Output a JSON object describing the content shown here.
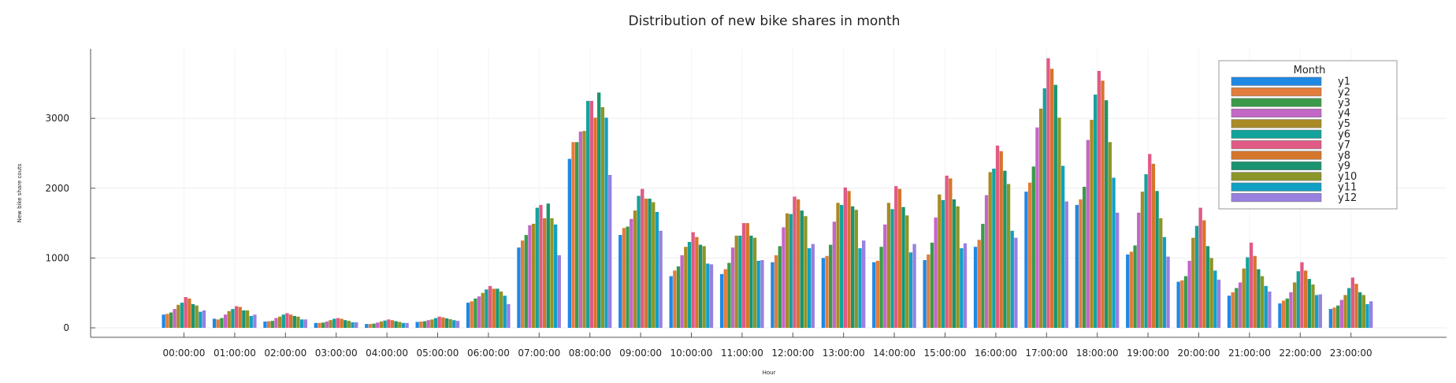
{
  "chart_data": {
    "type": "bar",
    "title": "Distribution of new bike shares in month",
    "xlabel": "Hour",
    "ylabel": "New bike share couts",
    "ylim": [
      -100,
      3950
    ],
    "yticks": [
      0,
      1000,
      2000,
      3000
    ],
    "grid": true,
    "legend": {
      "title": "Month",
      "position": "top-right"
    },
    "categories": [
      "00:00:00",
      "01:00:00",
      "02:00:00",
      "03:00:00",
      "04:00:00",
      "05:00:00",
      "06:00:00",
      "07:00:00",
      "08:00:00",
      "09:00:00",
      "10:00:00",
      "11:00:00",
      "12:00:00",
      "13:00:00",
      "14:00:00",
      "15:00:00",
      "16:00:00",
      "17:00:00",
      "18:00:00",
      "19:00:00",
      "20:00:00",
      "21:00:00",
      "22:00:00",
      "23:00:00"
    ],
    "series": [
      {
        "name": "y1",
        "color": "#1e88e5",
        "values": [
          190,
          130,
          90,
          70,
          55,
          85,
          360,
          1150,
          2420,
          1330,
          740,
          770,
          940,
          1000,
          940,
          970,
          1160,
          1950,
          1760,
          1050,
          660,
          460,
          350,
          270
        ]
      },
      {
        "name": "y2",
        "color": "#e27d3c",
        "values": [
          200,
          120,
          95,
          70,
          55,
          90,
          380,
          1250,
          2660,
          1430,
          820,
          840,
          1040,
          1030,
          960,
          1050,
          1260,
          2080,
          1840,
          1090,
          680,
          510,
          390,
          290
        ]
      },
      {
        "name": "y3",
        "color": "#3a9a4a",
        "values": [
          220,
          140,
          100,
          75,
          60,
          95,
          420,
          1330,
          2660,
          1450,
          880,
          930,
          1170,
          1190,
          1160,
          1220,
          1490,
          2310,
          2020,
          1180,
          740,
          570,
          420,
          320
        ]
      },
      {
        "name": "y4",
        "color": "#c367c7",
        "values": [
          270,
          190,
          140,
          90,
          75,
          110,
          450,
          1470,
          2810,
          1560,
          1040,
          1150,
          1440,
          1520,
          1480,
          1580,
          1900,
          2870,
          2690,
          1650,
          960,
          650,
          510,
          400
        ]
      },
      {
        "name": "y5",
        "color": "#aa8a25",
        "values": [
          330,
          240,
          160,
          110,
          90,
          120,
          500,
          1490,
          2820,
          1680,
          1160,
          1320,
          1640,
          1790,
          1790,
          1910,
          2230,
          3140,
          2980,
          1950,
          1290,
          850,
          650,
          470
        ]
      },
      {
        "name": "y6",
        "color": "#12a39b",
        "values": [
          360,
          270,
          190,
          130,
          105,
          140,
          550,
          1720,
          3250,
          1890,
          1230,
          1320,
          1630,
          1760,
          1700,
          1830,
          2280,
          3430,
          3340,
          2200,
          1460,
          1010,
          810,
          570
        ]
      },
      {
        "name": "y7",
        "color": "#e15a85",
        "values": [
          440,
          310,
          210,
          140,
          120,
          160,
          600,
          1760,
          3250,
          1990,
          1370,
          1500,
          1880,
          2010,
          2030,
          2180,
          2610,
          3860,
          3680,
          2490,
          1720,
          1220,
          940,
          720
        ]
      },
      {
        "name": "y8",
        "color": "#d4762c",
        "values": [
          420,
          300,
          190,
          130,
          110,
          150,
          560,
          1570,
          3010,
          1850,
          1300,
          1500,
          1840,
          1960,
          1990,
          2140,
          2530,
          3710,
          3540,
          2350,
          1540,
          1030,
          820,
          630
        ]
      },
      {
        "name": "y9",
        "color": "#1a9470",
        "values": [
          340,
          250,
          170,
          110,
          95,
          135,
          560,
          1780,
          3370,
          1850,
          1190,
          1320,
          1680,
          1740,
          1730,
          1840,
          2250,
          3480,
          3260,
          1960,
          1170,
          840,
          700,
          510
        ]
      },
      {
        "name": "y10",
        "color": "#8b9628",
        "values": [
          320,
          250,
          160,
          100,
          85,
          125,
          520,
          1570,
          3160,
          1800,
          1170,
          1290,
          1600,
          1690,
          1610,
          1740,
          2060,
          3010,
          2660,
          1570,
          1000,
          740,
          620,
          470
        ]
      },
      {
        "name": "y11",
        "color": "#11a0c4",
        "values": [
          230,
          170,
          120,
          80,
          70,
          110,
          460,
          1480,
          3010,
          1660,
          920,
          960,
          1140,
          1140,
          1080,
          1140,
          1390,
          2320,
          2150,
          1300,
          820,
          600,
          470,
          340
        ]
      },
      {
        "name": "y12",
        "color": "#9880e0",
        "values": [
          250,
          190,
          120,
          80,
          70,
          100,
          340,
          1040,
          2190,
          1390,
          910,
          970,
          1200,
          1250,
          1200,
          1210,
          1290,
          1810,
          1650,
          1020,
          690,
          520,
          480,
          380
        ]
      }
    ]
  }
}
